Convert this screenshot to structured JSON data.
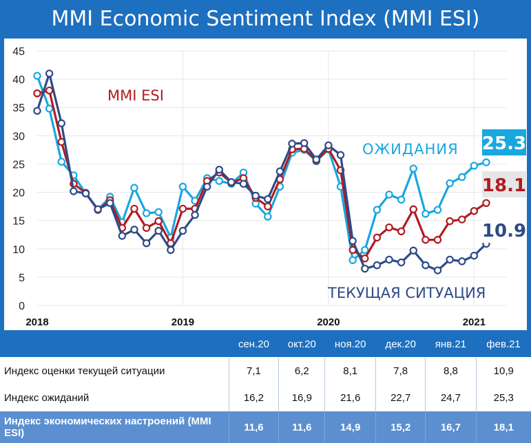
{
  "title": "MMI Economic Sentiment Index (MMI ESI)",
  "chart_data": {
    "type": "line",
    "ylim": [
      0,
      45
    ],
    "yticks": [
      0,
      5,
      10,
      15,
      20,
      25,
      30,
      35,
      40,
      45
    ],
    "xticks": [
      "2018",
      "2019",
      "2020",
      "2021"
    ],
    "grid": true,
    "series": [
      {
        "name": "ОЖИДАНИЯ",
        "color": "#19a7e0",
        "last_label": "25.3",
        "values": [
          40.6,
          34.8,
          25.4,
          23.0,
          19.8,
          16.9,
          19.2,
          14.7,
          20.8,
          16.3,
          16.5,
          12.0,
          21.0,
          18.5,
          22.5,
          22.0,
          21.5,
          23.5,
          18.0,
          15.7,
          21.0,
          27.0,
          27.5,
          25.5,
          27.6,
          21.0,
          8.0,
          9.8,
          16.9,
          19.6,
          18.7,
          24.2,
          16.2,
          16.9,
          21.6,
          22.7,
          24.7,
          25.3
        ]
      },
      {
        "name": "MMI ESI",
        "color": "#b01c20",
        "last_label": "18.1",
        "values": [
          37.5,
          38.0,
          28.9,
          21.5,
          19.9,
          16.9,
          18.6,
          13.7,
          17.1,
          13.7,
          14.9,
          11.0,
          17.1,
          17.1,
          22.0,
          23.5,
          21.7,
          22.5,
          19.0,
          17.5,
          22.3,
          27.6,
          27.7,
          25.6,
          27.7,
          23.9,
          9.8,
          8.3,
          12.0,
          13.8,
          13.1,
          17.0,
          11.6,
          11.6,
          14.9,
          15.2,
          16.7,
          18.1
        ]
      },
      {
        "name": "ТЕКУЩАЯ СИТУАЦИЯ",
        "color": "#2e4a87",
        "last_label": "10.9",
        "values": [
          34.4,
          41.0,
          32.2,
          20.2,
          19.8,
          17.0,
          18.1,
          12.3,
          13.4,
          11.0,
          13.2,
          9.8,
          13.2,
          16.0,
          21.0,
          24.0,
          21.8,
          21.5,
          19.4,
          18.8,
          23.7,
          28.6,
          28.7,
          25.8,
          28.3,
          26.6,
          11.4,
          6.5,
          7.1,
          8.1,
          7.6,
          9.7,
          7.1,
          6.2,
          8.1,
          7.8,
          8.8,
          10.9
        ]
      }
    ]
  },
  "labels": {
    "esi": "MMI ESI",
    "expect": "ОЖИДАНИЯ",
    "current": "ТЕКУЩАЯ СИТУАЦИЯ"
  },
  "table": {
    "months": [
      "сен.20",
      "окт.20",
      "ноя.20",
      "дек.20",
      "янв.21",
      "фев.21"
    ],
    "rows": [
      {
        "label": "Индекс оценки текущей ситуации",
        "values": [
          "7,1",
          "6,2",
          "8,1",
          "7,8",
          "8,8",
          "10,9"
        ]
      },
      {
        "label": "Индекс ожиданий",
        "values": [
          "16,2",
          "16,9",
          "21,6",
          "22,7",
          "24,7",
          "25,3"
        ]
      },
      {
        "label": "Индекс экономических настроений (MMI ESI)",
        "values": [
          "11,6",
          "11,6",
          "14,9",
          "15,2",
          "16,7",
          "18,1"
        ]
      }
    ]
  }
}
